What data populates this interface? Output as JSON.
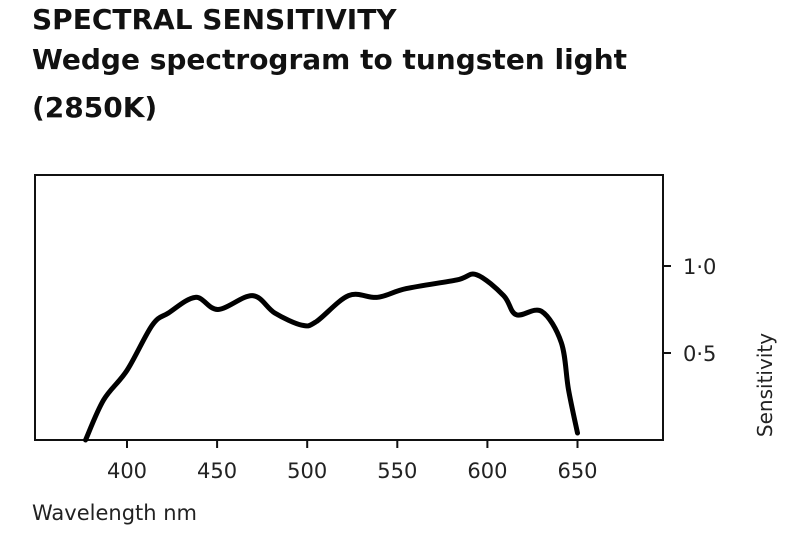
{
  "chart_data": {
    "type": "line",
    "title": "SPECTRAL SENSITIVITY",
    "subtitle_lines": [
      "Wedge spectrogram to tungsten light",
      "(2850K)"
    ],
    "xlabel": "Wavelength nm",
    "ylabel": "Sensitivity",
    "xlim": [
      349,
      697
    ],
    "ylim": [
      0,
      1.5
    ],
    "x_ticks": [
      400,
      450,
      500,
      550,
      600,
      650
    ],
    "x_tick_labels": [
      "400",
      "450",
      "500",
      "550",
      "600",
      "650"
    ],
    "y_ticks": [
      0.5,
      1.0
    ],
    "y_tick_labels": [
      "0·5",
      "1·0"
    ],
    "y_axis_side": "right",
    "grid": false,
    "series": [
      {
        "color": "#000000",
        "x": [
          377,
          387,
          400,
          414,
          423,
          438,
          450.5,
          469.6,
          482,
          497,
          505,
          523,
          539,
          555,
          583,
          594,
          609,
          616,
          630,
          641,
          645,
          650
        ],
        "y": [
          0,
          0.23,
          0.4,
          0.66,
          0.73,
          0.82,
          0.75,
          0.83,
          0.73,
          0.66,
          0.68,
          0.83,
          0.82,
          0.87,
          0.92,
          0.95,
          0.83,
          0.72,
          0.74,
          0.56,
          0.29,
          0.04
        ]
      }
    ]
  }
}
